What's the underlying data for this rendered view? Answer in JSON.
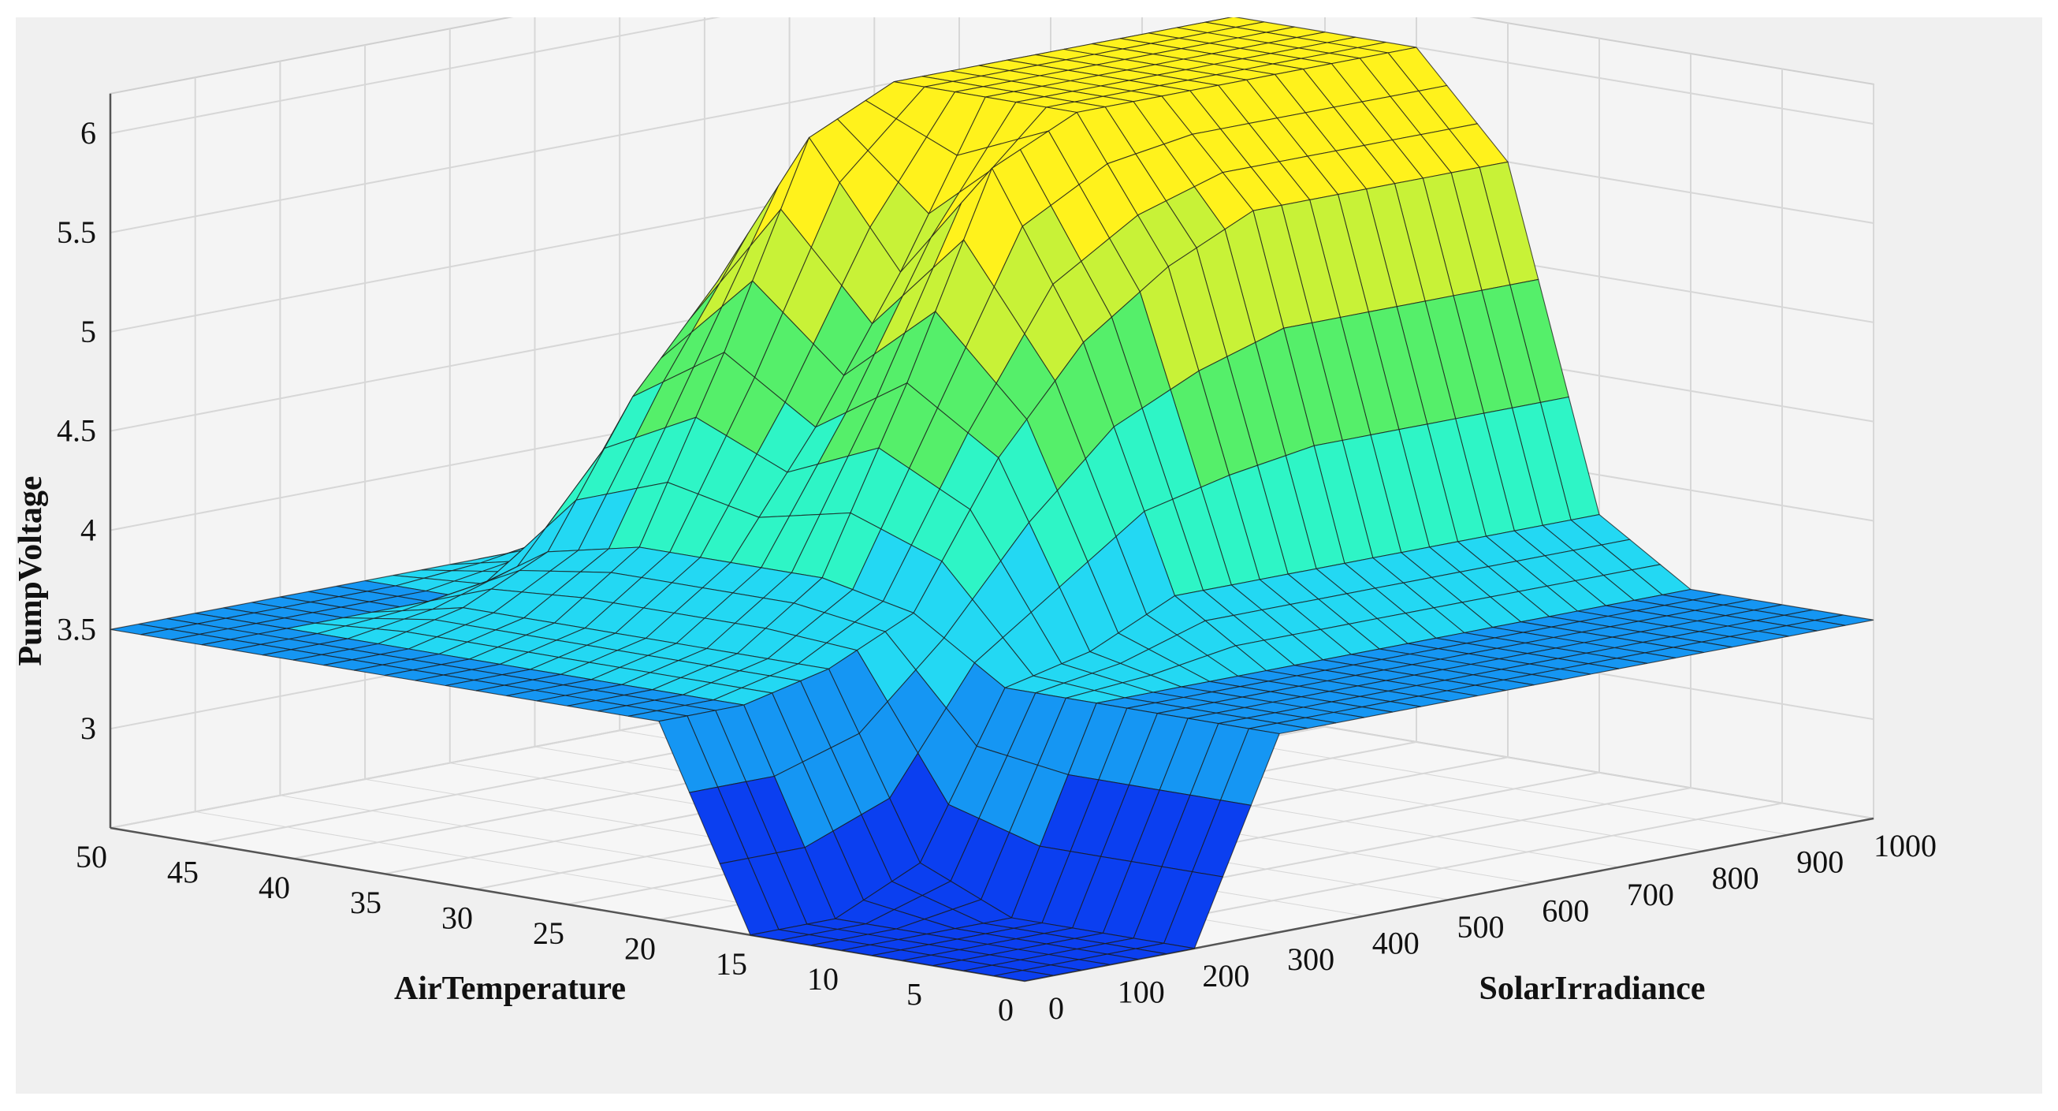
{
  "chart_data": {
    "type": "surface3d",
    "title": "",
    "xlabel": "SolarIrradiance",
    "ylabel": "AirTemperature",
    "zlabel": "PumpVoltage",
    "x_ticks": [
      "0",
      "100",
      "200",
      "300",
      "400",
      "500",
      "600",
      "700",
      "800",
      "900",
      "1000"
    ],
    "y_ticks": [
      "0",
      "5",
      "10",
      "15",
      "20",
      "25",
      "30",
      "35",
      "40",
      "45",
      "50"
    ],
    "z_ticks": [
      "3",
      "3.5",
      "4",
      "4.5",
      "5",
      "5.5",
      "6"
    ],
    "xlim": [
      0,
      1000
    ],
    "ylim": [
      0,
      50
    ],
    "zlim": [
      2.5,
      6.2
    ],
    "grid": true,
    "colormap": [
      "#0b3ff0",
      "#1596f3",
      "#23d8f3",
      "#2ef5c6",
      "#55ef6a",
      "#c8f237",
      "#fff21c"
    ],
    "surface": {
      "x": [
        0,
        100,
        200,
        300,
        400,
        500,
        600,
        700,
        800,
        900,
        1000
      ],
      "y": [
        0,
        5,
        10,
        15,
        20,
        25,
        30,
        35,
        40,
        45,
        50
      ],
      "z": [
        [
          2.5,
          2.5,
          2.5,
          3.5,
          3.5,
          3.5,
          3.5,
          3.5,
          3.5,
          3.5,
          3.5
        ],
        [
          2.5,
          2.5,
          2.5,
          3.5,
          3.5,
          3.5,
          3.5,
          3.5,
          3.5,
          3.5,
          3.5
        ],
        [
          2.5,
          2.5,
          2.5,
          3.5,
          3.5,
          3.5,
          3.5,
          3.5,
          3.5,
          3.5,
          3.5
        ],
        [
          2.5,
          2.5,
          2.7,
          3.5,
          3.6,
          3.8,
          3.8,
          3.8,
          3.8,
          3.8,
          3.8
        ],
        [
          3.5,
          3.5,
          3.6,
          3.8,
          4.5,
          5.0,
          5.3,
          5.5,
          5.5,
          5.5,
          5.5
        ],
        [
          3.5,
          3.5,
          3.6,
          3.9,
          4.8,
          5.8,
          6.0,
          6.0,
          6.0,
          6.0,
          6.0
        ],
        [
          3.5,
          3.5,
          3.6,
          3.9,
          4.5,
          5.2,
          6.0,
          6.0,
          6.0,
          6.0,
          6.0
        ],
        [
          3.5,
          3.5,
          3.6,
          3.9,
          4.8,
          5.8,
          6.0,
          6.0,
          6.0,
          6.0,
          6.0
        ],
        [
          3.5,
          3.5,
          3.6,
          3.8,
          4.5,
          5.0,
          5.3,
          5.5,
          5.5,
          5.5,
          5.5
        ],
        [
          3.5,
          3.5,
          3.5,
          3.5,
          3.6,
          3.8,
          3.8,
          3.8,
          3.8,
          3.8,
          3.8
        ],
        [
          3.5,
          3.5,
          3.5,
          3.5,
          3.5,
          3.5,
          3.5,
          3.5,
          3.5,
          3.5,
          3.5
        ]
      ]
    }
  }
}
